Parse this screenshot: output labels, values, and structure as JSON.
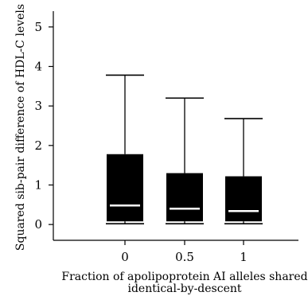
{
  "chart_data": {
    "type": "boxplot",
    "xlabel_lines": [
      "Fraction of apolipoprotein AI alleles shared",
      "identical-by-descent"
    ],
    "ylabel": "Squared sib-pair difference of HDL-C levels",
    "categories": [
      "0",
      "0.5",
      "1"
    ],
    "yticks": [
      "0",
      "1",
      "2",
      "3",
      "4",
      "5"
    ],
    "ylim": [
      -0.4,
      5.4
    ],
    "grid": false,
    "boxes": [
      {
        "category": "0",
        "min": 0.02,
        "q1": 0.08,
        "median": 0.48,
        "q3": 1.78,
        "max": 3.78
      },
      {
        "category": "0.5",
        "min": 0.02,
        "q1": 0.08,
        "median": 0.4,
        "q3": 1.3,
        "max": 3.2
      },
      {
        "category": "1",
        "min": 0.02,
        "q1": 0.08,
        "median": 0.34,
        "q3": 1.22,
        "max": 2.68
      }
    ],
    "box_color": "#000000",
    "median_color": "#ffffff"
  }
}
